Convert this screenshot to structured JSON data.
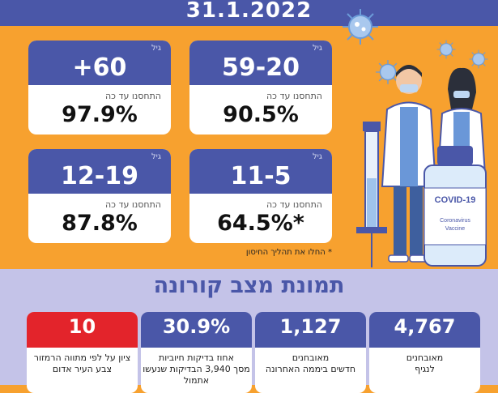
{
  "header": {
    "date": "31.1.2022"
  },
  "age_cards": [
    {
      "unit": "גיל",
      "range": "+60",
      "label": "התחסנו עד כה",
      "value": "97.9%"
    },
    {
      "unit": "גיל",
      "range": "59-20",
      "label": "התחסנו עד כה",
      "value": "90.5%"
    },
    {
      "unit": "גיל",
      "range": "12-19",
      "label": "התחסנו עד כה",
      "value": "87.8%"
    },
    {
      "unit": "גיל",
      "range": "11-5",
      "label": "התחסנו עד כה",
      "value": "64.5%*"
    }
  ],
  "footnote": "* החלו את תהליך החיסון",
  "illustration": {
    "vial_label": "COVID-19",
    "vial_sub1": "Coronavirus",
    "vial_sub2": "Vaccine"
  },
  "status": {
    "title": "תמונת מצב קורונה",
    "stats": [
      {
        "value": "10",
        "line1": "ציון על לפי מתווה הרמזור",
        "line2": "צבע העיר אדום"
      },
      {
        "value": "30.9%",
        "line1": "אחוז בדיקות חיוביות",
        "line2": "מסך 3,940 הבדיקות שנעשו אתמול"
      },
      {
        "value": "1,127",
        "line1": "מאובחנים",
        "line2": "חדשים ביממה האחרונה"
      },
      {
        "value": "4,767",
        "line1": "מאובחנים",
        "line2": "לנגיף"
      }
    ]
  },
  "colors": {
    "orange": "#F7A12F",
    "navy": "#4A57A8",
    "lavender": "#C4C3E8",
    "red": "#E3242B"
  }
}
